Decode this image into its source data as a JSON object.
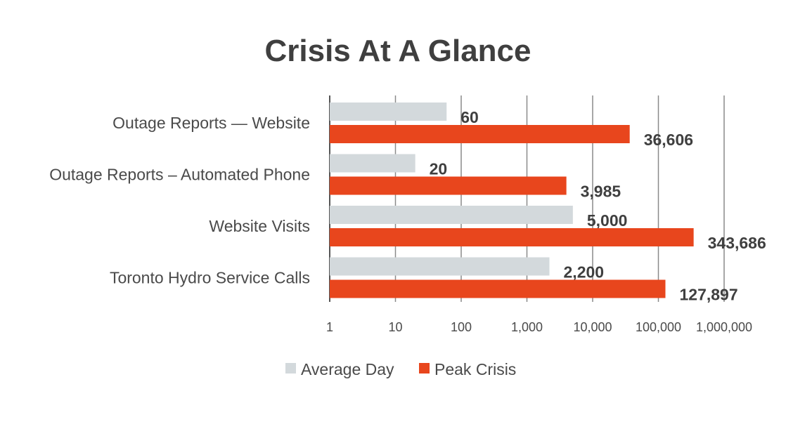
{
  "chart_data": {
    "type": "bar",
    "orientation": "horizontal",
    "title": "Crisis At A Glance",
    "xscale": "log",
    "xlim": [
      1,
      1000000
    ],
    "xticks": [
      1,
      10,
      100,
      1000,
      10000,
      100000,
      1000000
    ],
    "xtick_labels": [
      "1",
      "10",
      "100",
      "1,000",
      "10,000",
      "100,000",
      "1,000,000"
    ],
    "categories": [
      "Outage Reports — Website",
      "Outage Reports – Automated Phone",
      "Website Visits",
      "Toronto Hydro Service Calls"
    ],
    "series": [
      {
        "name": "Average Day",
        "color": "#d3d9dc",
        "values": [
          60,
          20,
          5000,
          2200
        ],
        "labels": [
          "60",
          "20",
          "5,000",
          "2,200"
        ]
      },
      {
        "name": "Peak Crisis",
        "color": "#e8461d",
        "values": [
          36606,
          3985,
          343686,
          127897
        ],
        "labels": [
          "36,606",
          "3,985",
          "343,686",
          "127,897"
        ]
      }
    ],
    "grid": true,
    "legend_position": "bottom"
  }
}
